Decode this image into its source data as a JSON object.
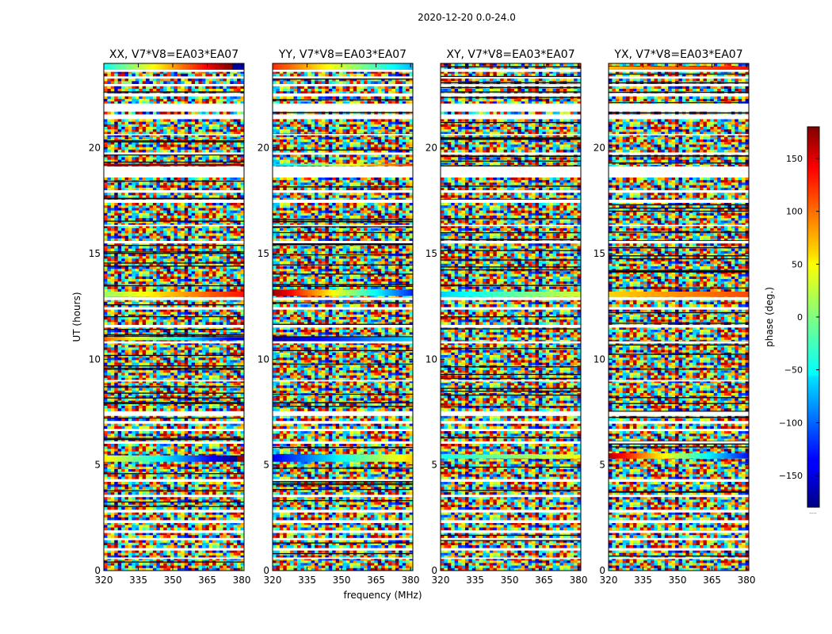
{
  "figure_title": "2020-12-20 0.0-24.0",
  "shared": {
    "xlabel": "frequency (MHz)",
    "ylabel": "UT (hours)",
    "colorbar_label": "phase (deg.)",
    "colorbar_foot": "....."
  },
  "chart_data": {
    "type": "heatmap",
    "x_range": [
      320,
      381
    ],
    "y_range": [
      0,
      24
    ],
    "x_ticks": [
      320,
      335,
      350,
      365,
      380
    ],
    "y_ticks": [
      0,
      5,
      10,
      15,
      20
    ],
    "colorbar": {
      "range": [
        -180,
        180
      ],
      "ticks": [
        -150,
        -100,
        -50,
        0,
        50,
        100,
        150
      ],
      "colormap": "jet"
    },
    "flagged_hours": [
      [
        0.55,
        0.62
      ],
      [
        0.95,
        1.05
      ],
      [
        1.45,
        1.52
      ],
      [
        1.78,
        1.9
      ],
      [
        2.25,
        2.35
      ],
      [
        2.75,
        2.88
      ],
      [
        3.5,
        3.58
      ],
      [
        4.25,
        4.33
      ],
      [
        6.05,
        6.12
      ],
      [
        6.62,
        6.7
      ],
      [
        6.95,
        7.08
      ],
      [
        7.35,
        7.52
      ],
      [
        8.95,
        9.02
      ],
      [
        10.75,
        10.85
      ],
      [
        11.5,
        11.6
      ],
      [
        12.35,
        12.42
      ],
      [
        12.8,
        12.9
      ],
      [
        15.5,
        15.6
      ],
      [
        16.3,
        16.36
      ],
      [
        17.45,
        17.55
      ],
      [
        17.9,
        18.0
      ],
      [
        18.6,
        18.68
      ],
      [
        18.75,
        19.12
      ],
      [
        19.7,
        19.78
      ],
      [
        20.6,
        20.66
      ],
      [
        21.4,
        21.55
      ],
      [
        21.75,
        22.1
      ],
      [
        22.5,
        22.58
      ],
      [
        22.95,
        23.02
      ],
      [
        23.3,
        23.35
      ],
      [
        23.6,
        23.7
      ]
    ],
    "panels": [
      {
        "title": "XX, V7*V8=EA03*EA07",
        "coherent_bands": [
          {
            "t": [
              23.65,
              24.0
            ],
            "phase_start": -40,
            "phase_end": 200
          },
          {
            "t": [
              12.95,
              13.2
            ],
            "phase_start": 10,
            "phase_end": 130
          },
          {
            "t": [
              10.9,
              11.05
            ],
            "phase_start": 100,
            "phase_end": -160
          },
          {
            "t": [
              5.15,
              5.45
            ],
            "phase_start": 50,
            "phase_end": -190
          },
          {
            "t": [
              19.15,
              19.25
            ],
            "phase_start": 170,
            "phase_end": 175
          }
        ]
      },
      {
        "title": "YY, V7*V8=EA03*EA07",
        "coherent_bands": [
          {
            "t": [
              23.65,
              24.0
            ],
            "phase_start": 120,
            "phase_end": -70
          },
          {
            "t": [
              13.0,
              13.3
            ],
            "phase_start": 170,
            "phase_end": -120
          },
          {
            "t": [
              10.85,
              11.05
            ],
            "phase_start": -170,
            "phase_end": -60
          },
          {
            "t": [
              5.15,
              5.5
            ],
            "phase_start": -140,
            "phase_end": 60
          },
          {
            "t": [
              19.15,
              19.25
            ],
            "phase_start": -60,
            "phase_end": 120
          }
        ]
      },
      {
        "title": "XY, V7*V8=EA03*EA07",
        "coherent_bands": [
          {
            "t": [
              12.95,
              13.2
            ],
            "phase_start": -60,
            "phase_end": 30
          },
          {
            "t": [
              5.3,
              5.5
            ],
            "phase_start": -40,
            "phase_end": 40
          }
        ]
      },
      {
        "title": "YX, V7*V8=EA03*EA07",
        "coherent_bands": [
          {
            "t": [
              23.65,
              23.85
            ],
            "phase_start": 70,
            "phase_end": 130
          },
          {
            "t": [
              12.95,
              13.2
            ],
            "phase_start": 60,
            "phase_end": 110
          },
          {
            "t": [
              5.3,
              5.55
            ],
            "phase_start": 160,
            "phase_end": -130
          }
        ]
      }
    ]
  }
}
